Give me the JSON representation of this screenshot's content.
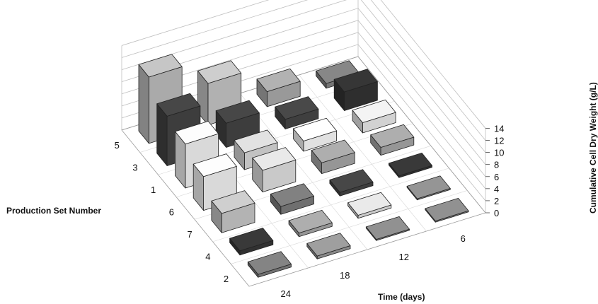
{
  "chart_data": {
    "type": "bar3d",
    "title": "",
    "xlabel": "Time (days)",
    "ylabel": "Production Set Number",
    "zlabel": "Cumulative Cell Dry Weight (g/L)",
    "x_categories": [
      "6",
      "12",
      "18",
      "24"
    ],
    "y_categories": [
      "5",
      "3",
      "1",
      "6",
      "7",
      "4",
      "2"
    ],
    "zlim": [
      0,
      14
    ],
    "z_ticks": [
      0,
      2,
      4,
      6,
      8,
      10,
      12,
      14
    ],
    "grid": true,
    "legend": "none",
    "values": [
      [
        0.8,
        2.5,
        6.9,
        11.0
      ],
      [
        3.1,
        1.6,
        4.0,
        8.2
      ],
      [
        1.7,
        1.7,
        2.8,
        7.3
      ],
      [
        1.3,
        1.8,
        3.6,
        5.6
      ],
      [
        0.3,
        0.6,
        1.3,
        3.2
      ],
      [
        0.2,
        0.5,
        0.6,
        0.7
      ],
      [
        0.2,
        0.2,
        0.5,
        0.5
      ]
    ],
    "colors": [
      [
        "#6f6f6f",
        "#929292",
        "#a9a9a9",
        "#a2a2a2"
      ],
      [
        "#2c2c2c",
        "#3c3c3c",
        "#3a3a3a",
        "#3a3a3a"
      ],
      [
        "#c8c8c8",
        "#d6d6d6",
        "#b9b9b9",
        "#cfcfcf"
      ],
      [
        "#8f8f8f",
        "#8f8f8f",
        "#bfbfbf",
        "#cfcfcf"
      ],
      [
        "#2f2f2f",
        "#3a3a3a",
        "#6a6a6a",
        "#aaaaaa"
      ],
      [
        "#7a7a7a",
        "#c0c0c0",
        "#8f8f8f",
        "#2f2f2f"
      ],
      [
        "#777777",
        "#777777",
        "#828282",
        "#6c6c6c"
      ]
    ]
  }
}
